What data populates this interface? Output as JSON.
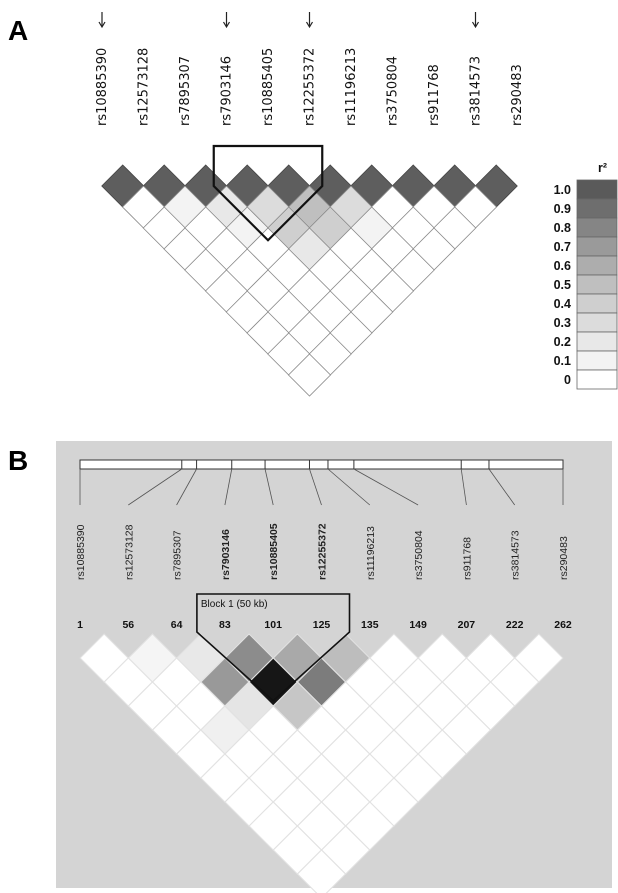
{
  "panel_a": {
    "label": "A",
    "snps": [
      "rs10885390",
      "rs12573128",
      "rs7895307",
      "rs7903146",
      "rs10885405",
      "rs12255372",
      "rs11196213",
      "rs3750804",
      "rs911768",
      "rs3814573",
      "rs290483"
    ],
    "arrow_marked_snps": [
      0,
      3,
      5,
      9
    ],
    "highlighted_block_snps": [
      3,
      4,
      5
    ],
    "colors": {
      "scale_1_0": "#5e5e5e",
      "empty_cell": "#ffffff",
      "outline": "#777777"
    },
    "r2_matrix_note": "pairwise r2 shading from scale; first row darkest",
    "first_row_r2": [
      1.0,
      1.0,
      1.0,
      1.0,
      1.0,
      1.0,
      1.0,
      1.0,
      1.0,
      1.0
    ],
    "second_row_r2": [
      0,
      0.1,
      0.2,
      0.3,
      0.5,
      0.3,
      0,
      0,
      0,
      0
    ],
    "third_row_r2": [
      0,
      0,
      0.1,
      0.4,
      0.4,
      0.1,
      0,
      0,
      0
    ],
    "fourth_row_r2": [
      0,
      0,
      0,
      0.2,
      0,
      0,
      0,
      0
    ]
  },
  "legend": {
    "title": "r²",
    "levels": [
      "1.0",
      "0.9",
      "0.8",
      "0.7",
      "0.6",
      "0.5",
      "0.4",
      "0.3",
      "0.2",
      "0.1",
      "0"
    ],
    "colors": [
      "#5a5a5a",
      "#6e6e6e",
      "#858585",
      "#9a9a9a",
      "#adadad",
      "#bfbfbf",
      "#cfcfcf",
      "#dcdcdc",
      "#e8e8e8",
      "#f3f3f3",
      "#ffffff"
    ]
  },
  "panel_b": {
    "label": "B",
    "snps": [
      "rs10885390",
      "rs12573128",
      "rs7895307",
      "rs7903146",
      "rs10885405",
      "rs12255372",
      "rs11196213",
      "rs3750804",
      "rs911768",
      "rs3814573",
      "rs290483"
    ],
    "bold_snps": [
      3,
      4,
      5
    ],
    "positions": [
      "1",
      "56",
      "64",
      "83",
      "101",
      "125",
      "135",
      "149",
      "207",
      "222",
      "262"
    ],
    "block_label": "Block 1 (50 kb)",
    "background": "#d4d4d4",
    "block_cells": [
      {
        "i": 3,
        "j": 4,
        "color": "#8c8c8c"
      },
      {
        "i": 4,
        "j": 5,
        "color": "#a9a9a9"
      },
      {
        "i": 5,
        "j": 6,
        "color": "#bdbdbd"
      },
      {
        "i": 2,
        "j": 3,
        "color": "#e8e8e8"
      },
      {
        "i": 3,
        "j": 5,
        "color": "#161616"
      },
      {
        "i": 2,
        "j": 4,
        "color": "#999999"
      },
      {
        "i": 4,
        "j": 6,
        "color": "#7c7c7c"
      },
      {
        "i": 3,
        "j": 6,
        "color": "#c6c6c6"
      },
      {
        "i": 2,
        "j": 5,
        "color": "#e5e5e5"
      },
      {
        "i": 1,
        "j": 2,
        "color": "#f5f5f5"
      },
      {
        "i": 1,
        "j": 5,
        "color": "#f0f0f0"
      }
    ]
  }
}
